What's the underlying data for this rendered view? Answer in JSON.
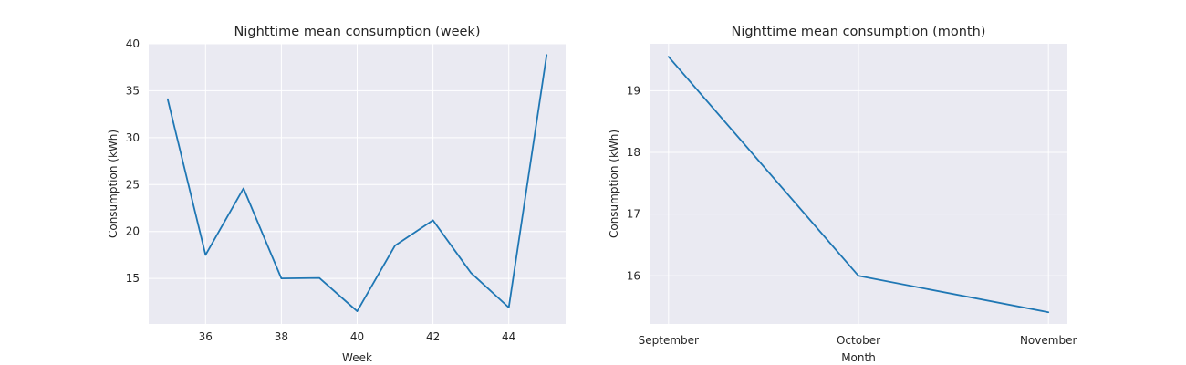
{
  "chart_data": [
    {
      "type": "line",
      "title": "Nighttime mean consumption (week)",
      "xlabel": "Week",
      "ylabel": "Consumption (kWh)",
      "x": [
        35,
        36,
        37,
        38,
        39,
        40,
        41,
        42,
        43,
        44,
        45
      ],
      "series": [
        {
          "values": [
            34.1,
            17.5,
            24.6,
            15.0,
            15.05,
            11.5,
            18.5,
            21.2,
            15.6,
            11.9,
            38.8
          ]
        }
      ],
      "xticks": [
        36,
        38,
        40,
        42,
        44
      ],
      "yticks": [
        15,
        20,
        25,
        30,
        35,
        40
      ],
      "xlim": [
        34.5,
        45.5
      ],
      "ylim": [
        10.15,
        40
      ],
      "grid": true
    },
    {
      "type": "line",
      "title": "Nighttime mean consumption (month)",
      "xlabel": "Month",
      "ylabel": "Consumption (kWh)",
      "categories": [
        "September",
        "October",
        "November"
      ],
      "series": [
        {
          "values": [
            19.55,
            16.0,
            15.41
          ]
        }
      ],
      "yticks": [
        16,
        17,
        18,
        19
      ],
      "ylim": [
        15.22,
        19.76
      ],
      "grid": true
    }
  ]
}
